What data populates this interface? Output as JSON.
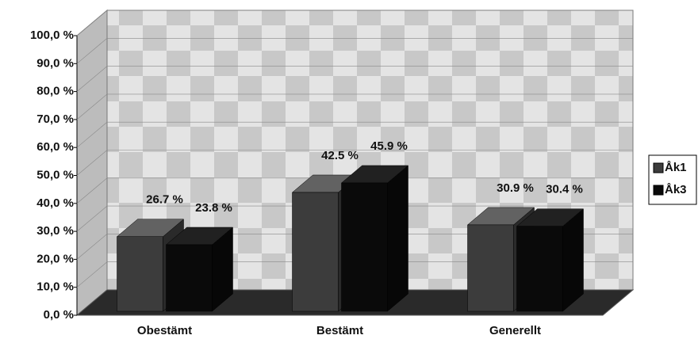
{
  "chart_data": {
    "type": "bar3d",
    "categories": [
      "Obestämt",
      "Bestämt",
      "Generellt"
    ],
    "series": [
      {
        "name": "Åk1",
        "color": "#3c3c3c",
        "values": [
          26.7,
          42.5,
          30.9
        ],
        "value_labels": [
          "26.7 %",
          "42.5 %",
          "30.9 %"
        ]
      },
      {
        "name": "Åk3",
        "color": "#0a0a0a",
        "values": [
          23.8,
          45.9,
          30.4
        ],
        "value_labels": [
          "23.8 %",
          "45.9 %",
          "30.4 %"
        ]
      }
    ],
    "ylim": [
      0,
      100
    ],
    "yticks": [
      {
        "value": 0,
        "label": "0,0 %"
      },
      {
        "value": 10,
        "label": "10,0 %"
      },
      {
        "value": 20,
        "label": "20,0 %"
      },
      {
        "value": 30,
        "label": "30,0 %"
      },
      {
        "value": 40,
        "label": "40,0 %"
      },
      {
        "value": 50,
        "label": "50,0 %"
      },
      {
        "value": 60,
        "label": "60,0 %"
      },
      {
        "value": 70,
        "label": "70,0 %"
      },
      {
        "value": 80,
        "label": "80,0 %"
      },
      {
        "value": 90,
        "label": "90,0 %"
      },
      {
        "value": 100,
        "label": "100,0 %"
      }
    ],
    "grid": true,
    "legend": "right"
  }
}
